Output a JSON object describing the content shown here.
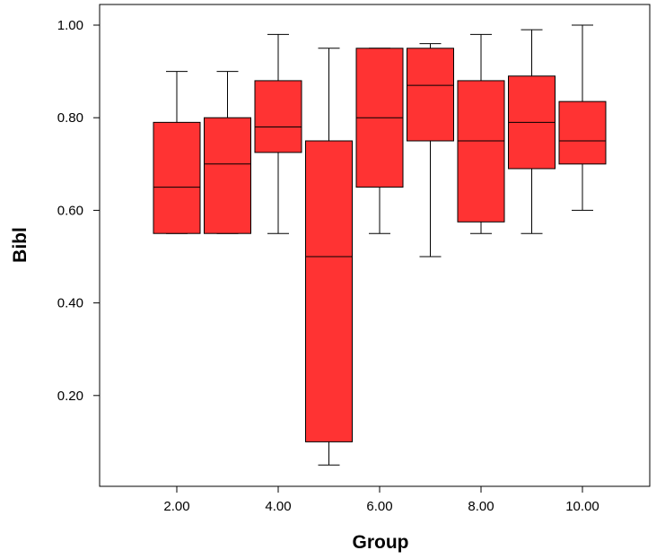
{
  "chart_data": {
    "type": "boxplot",
    "xlabel": "Group",
    "ylabel": "Bibl",
    "x_ticks": [
      "2.00",
      "4.00",
      "6.00",
      "8.00",
      "10.00"
    ],
    "y_ticks": [
      "0.20",
      "0.40",
      "0.60",
      "0.80",
      "1.00"
    ],
    "ylim": [
      0.0,
      1.02
    ],
    "grid": false,
    "box_color": "#ff3333",
    "groups": [
      {
        "group": 2,
        "min": 0.55,
        "q1": 0.55,
        "median": 0.65,
        "q3": 0.79,
        "max": 0.9
      },
      {
        "group": 3,
        "min": 0.55,
        "q1": 0.55,
        "median": 0.7,
        "q3": 0.8,
        "max": 0.9
      },
      {
        "group": 4,
        "min": 0.55,
        "q1": 0.725,
        "median": 0.78,
        "q3": 0.88,
        "max": 0.98
      },
      {
        "group": 5,
        "min": 0.05,
        "q1": 0.1,
        "median": 0.5,
        "q3": 0.75,
        "max": 0.95
      },
      {
        "group": 6,
        "min": 0.55,
        "q1": 0.65,
        "median": 0.8,
        "q3": 0.95,
        "max": 0.95
      },
      {
        "group": 7,
        "min": 0.5,
        "q1": 0.75,
        "median": 0.87,
        "q3": 0.95,
        "max": 0.96
      },
      {
        "group": 8,
        "min": 0.55,
        "q1": 0.575,
        "median": 0.75,
        "q3": 0.88,
        "max": 0.98
      },
      {
        "group": 9,
        "min": 0.55,
        "q1": 0.69,
        "median": 0.79,
        "q3": 0.89,
        "max": 0.99
      },
      {
        "group": 10,
        "min": 0.6,
        "q1": 0.7,
        "median": 0.75,
        "q3": 0.835,
        "max": 1.0
      }
    ]
  }
}
